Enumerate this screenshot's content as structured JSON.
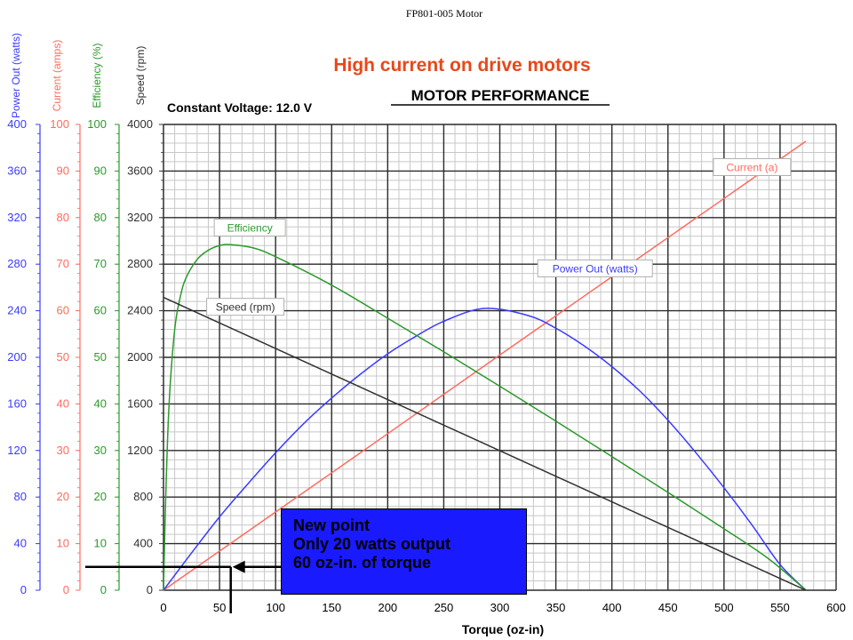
{
  "document_title": "FP801-005 Motor",
  "headline": "High current on drive motors",
  "callout": {
    "lines": [
      "New point",
      "Only 20 watts output",
      "60 oz-in. of torque"
    ]
  },
  "colors": {
    "power": "#3b3bff",
    "current": "#ff6b5e",
    "efficiency": "#2a9a2a",
    "speed": "#303030",
    "headline": "#e8481a",
    "callout_bg": "#1a1aff"
  },
  "chart_data": {
    "type": "line",
    "title": "MOTOR PERFORMANCE",
    "subtitle": "Constant Voltage: 12.0 V",
    "xlabel": "Torque (oz-in)",
    "xlim": [
      0,
      600
    ],
    "x_ticks": [
      0,
      50,
      100,
      150,
      200,
      250,
      300,
      350,
      400,
      450,
      500,
      550,
      600
    ],
    "grid": true,
    "y_axes": [
      {
        "label": "Power Out (watts)",
        "color": "#3b3bff",
        "min": 0,
        "max": 400,
        "ticks": [
          0,
          40,
          80,
          120,
          160,
          200,
          240,
          280,
          320,
          360,
          400
        ]
      },
      {
        "label": "Current (amps)",
        "color": "#ff6b5e",
        "min": 0,
        "max": 100,
        "ticks": [
          0,
          10,
          20,
          30,
          40,
          50,
          60,
          70,
          80,
          90,
          100
        ]
      },
      {
        "label": "Efficiency (%)",
        "color": "#2a9a2a",
        "min": 0,
        "max": 100,
        "ticks": [
          0,
          10,
          20,
          30,
          40,
          50,
          60,
          70,
          80,
          90,
          100
        ]
      },
      {
        "label": "Speed (rpm)",
        "color": "#303030",
        "min": 0,
        "max": 4000,
        "ticks": [
          0,
          400,
          800,
          1200,
          1600,
          2000,
          2400,
          2800,
          3200,
          3600,
          4000
        ]
      }
    ],
    "series": [
      {
        "name": "Current (a)",
        "axis": 1,
        "color": "#ff6b5e",
        "x": [
          0,
          100,
          200,
          300,
          400,
          500,
          573
        ],
        "y": [
          0,
          16.8,
          33.6,
          50.5,
          67.3,
          84.1,
          96.4
        ]
      },
      {
        "name": "Power Out (watts)",
        "axis": 0,
        "color": "#3b3bff",
        "x": [
          0,
          25,
          50,
          75,
          100,
          125,
          150,
          175,
          200,
          225,
          250,
          286,
          325,
          350,
          375,
          400,
          425,
          450,
          475,
          500,
          525,
          550,
          573
        ],
        "y": [
          0,
          32,
          63,
          91,
          118,
          143,
          165,
          185,
          203,
          218,
          231,
          242,
          236,
          225,
          210,
          192,
          171,
          146,
          118,
          88,
          56,
          22,
          0
        ]
      },
      {
        "name": "Efficiency",
        "axis": 2,
        "color": "#2a9a2a",
        "x": [
          0,
          2,
          5,
          10,
          15,
          20,
          30,
          40,
          50,
          60,
          80,
          100,
          150,
          200,
          250,
          300,
          350,
          400,
          450,
          500,
          540,
          573
        ],
        "y": [
          0,
          20,
          40,
          56,
          63,
          67,
          71,
          73,
          74,
          74.2,
          73.5,
          71.6,
          65.5,
          58.4,
          51.2,
          43.8,
          36.3,
          28.7,
          21,
          13.2,
          6.7,
          0
        ]
      },
      {
        "name": "Speed (rpm)",
        "axis": 3,
        "color": "#303030",
        "x": [
          0,
          573
        ],
        "y": [
          2515,
          0
        ]
      }
    ],
    "series_labels": [
      {
        "series": 0,
        "text": "Current (a)",
        "x": 525,
        "y": 3630,
        "axis": 3
      },
      {
        "series": 1,
        "text": "Power Out (watts)",
        "x": 385,
        "y": 2760,
        "axis": 3
      },
      {
        "series": 2,
        "text": "Efficiency",
        "x": 77,
        "y": 3110,
        "axis": 3
      },
      {
        "series": 3,
        "text": "Speed (rpm)",
        "x": 73,
        "y": 2430,
        "axis": 3
      }
    ],
    "annotation": {
      "torque": 60,
      "power": 20
    }
  }
}
